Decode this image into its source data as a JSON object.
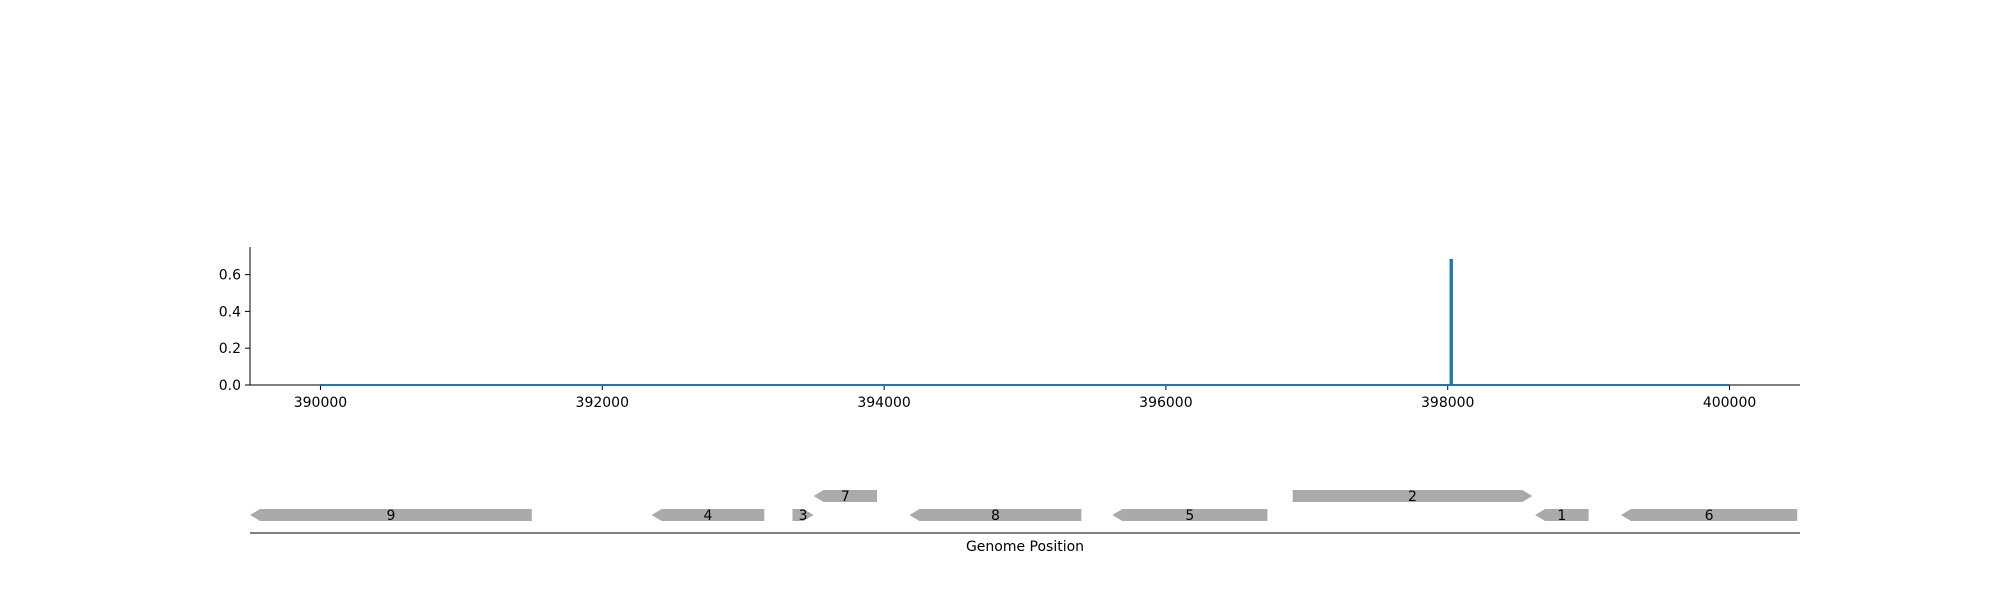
{
  "chart_data": [
    {
      "type": "line",
      "title": "",
      "xlabel": "",
      "ylabel": "",
      "xlim": [
        389500,
        400500
      ],
      "ylim": [
        0,
        0.75
      ],
      "x_ticks": [
        390000,
        392000,
        394000,
        396000,
        398000,
        400000
      ],
      "x_tick_labels": [
        "390000",
        "392000",
        "394000",
        "396000",
        "398000",
        "400000"
      ],
      "y_ticks": [
        0.0,
        0.2,
        0.4,
        0.6
      ],
      "y_tick_labels": [
        "0.0",
        "0.2",
        "0.4",
        "0.6"
      ],
      "grid": false,
      "series": [
        {
          "color": "#1f77b4",
          "x": [
            390000,
            398020,
            398020,
            398030,
            398030,
            400000
          ],
          "y": [
            0.0,
            0.0,
            0.68,
            0.68,
            0.0,
            0.0
          ]
        }
      ]
    },
    {
      "type": "gene_track",
      "xlabel": "Genome Position",
      "xlim": [
        389500,
        400500
      ],
      "gene_color": "#aaaaaa",
      "genes": [
        {
          "label": "9",
          "start": 389500,
          "end": 391500,
          "strand": "-",
          "row": 0
        },
        {
          "label": "4",
          "start": 392350,
          "end": 393150,
          "strand": "-",
          "row": 0
        },
        {
          "label": "3",
          "start": 393350,
          "end": 393500,
          "strand": "+",
          "row": 0
        },
        {
          "label": "7",
          "start": 393500,
          "end": 393950,
          "strand": "-",
          "row": 1
        },
        {
          "label": "8",
          "start": 394180,
          "end": 395400,
          "strand": "-",
          "row": 0
        },
        {
          "label": "5",
          "start": 395620,
          "end": 396720,
          "strand": "-",
          "row": 0
        },
        {
          "label": "2",
          "start": 396900,
          "end": 398600,
          "strand": "+",
          "row": 1
        },
        {
          "label": "1",
          "start": 398620,
          "end": 399000,
          "strand": "-",
          "row": 0
        },
        {
          "label": "6",
          "start": 399230,
          "end": 400480,
          "strand": "-",
          "row": 0
        }
      ]
    }
  ]
}
